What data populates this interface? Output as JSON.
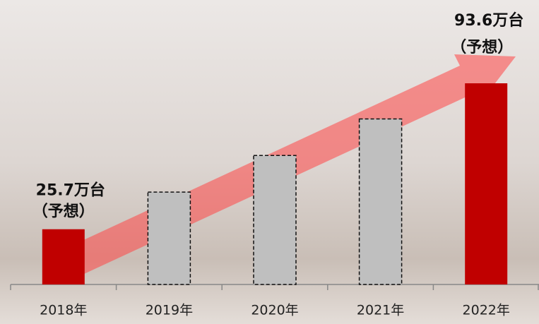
{
  "chart_data": {
    "type": "bar",
    "categories": [
      "2018年",
      "2019年",
      "2020年",
      "2021年",
      "2022年"
    ],
    "values": [
      25.7,
      43,
      60,
      77,
      93.6
    ],
    "value_labels": [
      "25.7万台",
      null,
      null,
      null,
      "93.6万台"
    ],
    "value_notes": [
      "（予想）",
      null,
      null,
      null,
      "（予想）"
    ],
    "colors": [
      "#c00000",
      "#bfbfbf",
      "#bfbfbf",
      "#bfbfbf",
      "#c00000"
    ],
    "dashed": [
      false,
      true,
      true,
      true,
      false
    ]
  }
}
